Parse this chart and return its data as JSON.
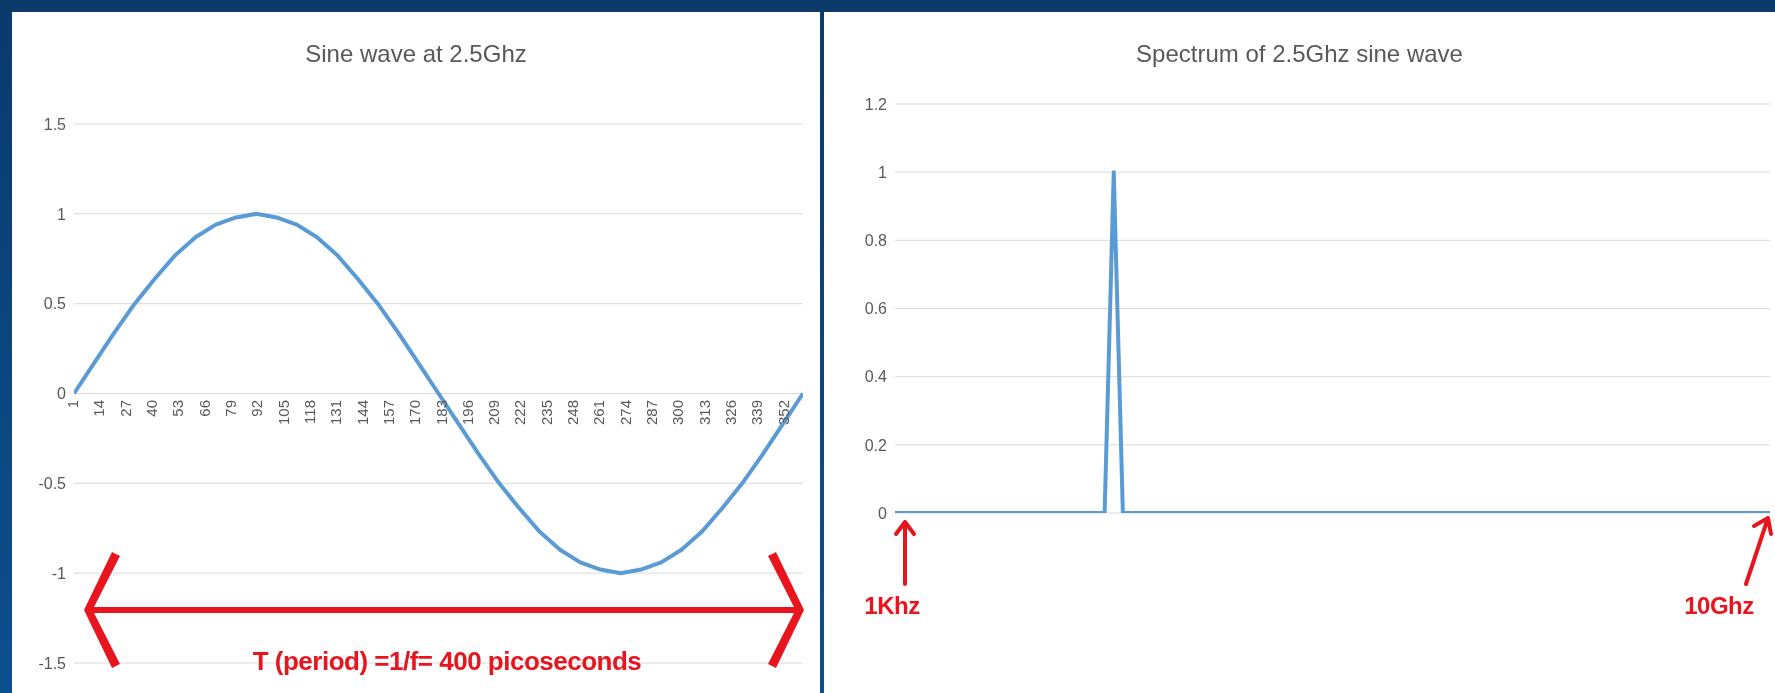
{
  "chart_data": [
    {
      "type": "line",
      "title": "Sine wave at 2.5Ghz",
      "x": [
        1,
        11,
        21,
        31,
        41,
        51,
        61,
        71,
        81,
        91,
        101,
        111,
        121,
        131,
        141,
        151,
        161,
        171,
        181,
        191,
        201,
        211,
        221,
        231,
        241,
        251,
        261,
        271,
        281,
        291,
        301,
        311,
        321,
        331,
        341,
        351,
        361
      ],
      "series": [
        {
          "color": "#5b9bd5",
          "values": [
            0,
            0.17,
            0.34,
            0.5,
            0.64,
            0.77,
            0.87,
            0.94,
            0.98,
            1,
            0.98,
            0.94,
            0.87,
            0.77,
            0.64,
            0.5,
            0.34,
            0.17,
            0,
            -0.17,
            -0.34,
            -0.5,
            -0.64,
            -0.77,
            -0.87,
            -0.94,
            -0.98,
            -1,
            -0.98,
            -0.94,
            -0.87,
            -0.77,
            -0.64,
            -0.5,
            -0.34,
            -0.17,
            0
          ]
        }
      ],
      "xlim": [
        1,
        361
      ],
      "xticks": [
        1,
        14,
        27,
        40,
        53,
        66,
        79,
        92,
        105,
        118,
        131,
        144,
        157,
        170,
        183,
        196,
        209,
        222,
        235,
        248,
        261,
        274,
        287,
        300,
        313,
        326,
        339,
        352
      ],
      "ylim": [
        -1.5,
        1.5
      ],
      "yticks": [
        -1.5,
        -1,
        -0.5,
        0,
        0.5,
        1,
        1.5
      ],
      "grid": "y",
      "marker": "none",
      "annotations": [
        "T (period) =1/f= 400 picoseconds"
      ]
    },
    {
      "type": "line",
      "title": "Spectrum of 2.5Ghz sine wave",
      "categories": [
        null,
        null,
        null,
        null,
        null,
        null,
        null,
        null,
        null,
        null,
        null,
        null,
        null,
        null,
        null,
        null,
        null,
        null,
        null,
        null,
        null,
        null,
        null,
        null,
        null,
        null,
        null,
        null,
        null,
        null,
        null,
        null,
        null,
        null,
        null,
        null,
        null,
        null,
        null,
        null,
        null,
        null,
        null,
        null,
        null,
        null,
        null,
        null,
        null,
        null,
        null,
        null,
        null,
        null,
        null,
        null,
        null,
        null,
        null,
        null,
        null,
        null,
        null,
        null,
        null,
        null,
        null,
        null,
        null,
        null,
        null,
        null,
        null,
        null,
        null,
        null,
        null,
        null,
        null,
        null,
        null,
        null,
        null,
        null,
        null,
        null,
        null,
        null,
        null,
        null,
        null,
        null,
        null,
        null,
        null,
        null,
        null
      ],
      "series": [
        {
          "color": "#5b9bd5",
          "values": [
            0,
            0,
            0,
            0,
            0,
            0,
            0,
            0,
            0,
            0,
            0,
            0,
            0,
            0,
            0,
            0,
            0,
            0,
            0,
            0,
            0,
            0,
            0,
            0,
            1,
            0,
            0,
            0,
            0,
            0,
            0,
            0,
            0,
            0,
            0,
            0,
            0,
            0,
            0,
            0,
            0,
            0,
            0,
            0,
            0,
            0,
            0,
            0,
            0,
            0,
            0,
            0,
            0,
            0,
            0,
            0,
            0,
            0,
            0,
            0,
            0,
            0,
            0,
            0,
            0,
            0,
            0,
            0,
            0,
            0,
            0,
            0,
            0,
            0,
            0,
            0,
            0,
            0,
            0,
            0,
            0,
            0,
            0,
            0,
            0,
            0,
            0,
            0,
            0,
            0,
            0,
            0,
            0,
            0,
            0,
            0,
            0
          ]
        }
      ],
      "ylim": [
        0,
        1.2
      ],
      "yticks": [
        0,
        0.2,
        0.4,
        0.6,
        0.8,
        1,
        1.2
      ],
      "grid": "y",
      "marker": "none",
      "tick_labels": "y",
      "annotations": [
        "1Khz",
        "10Ghz"
      ]
    }
  ]
}
